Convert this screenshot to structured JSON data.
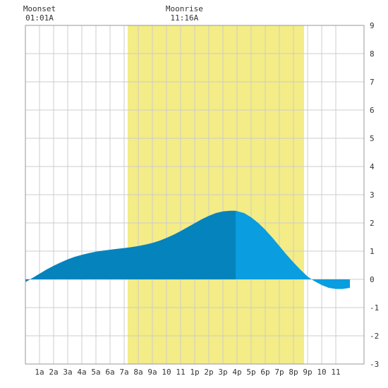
{
  "chart_data": {
    "type": "area",
    "title": "",
    "xlabel": "",
    "ylabel": "",
    "xlim": [
      0,
      24
    ],
    "ylim": [
      -3,
      9
    ],
    "grid": true,
    "x_ticks": [
      {
        "x": 1,
        "label": "1a"
      },
      {
        "x": 2,
        "label": "2a"
      },
      {
        "x": 3,
        "label": "3a"
      },
      {
        "x": 4,
        "label": "4a"
      },
      {
        "x": 5,
        "label": "5a"
      },
      {
        "x": 6,
        "label": "6a"
      },
      {
        "x": 7,
        "label": "7a"
      },
      {
        "x": 8,
        "label": "8a"
      },
      {
        "x": 9,
        "label": "9a"
      },
      {
        "x": 10,
        "label": "10"
      },
      {
        "x": 11,
        "label": "11"
      },
      {
        "x": 12,
        "label": "1p"
      },
      {
        "x": 13,
        "label": "2p"
      },
      {
        "x": 14,
        "label": "3p"
      },
      {
        "x": 15,
        "label": "4p"
      },
      {
        "x": 16,
        "label": "5p"
      },
      {
        "x": 17,
        "label": "6p"
      },
      {
        "x": 18,
        "label": "7p"
      },
      {
        "x": 19,
        "label": "8p"
      },
      {
        "x": 20,
        "label": "9p"
      },
      {
        "x": 21,
        "label": "10"
      },
      {
        "x": 22,
        "label": "11"
      }
    ],
    "y_ticks": [
      -3,
      -2,
      -1,
      0,
      1,
      2,
      3,
      4,
      5,
      6,
      7,
      8,
      9
    ],
    "daylight": {
      "start": 7.25,
      "end": 19.75,
      "color": "#f4ec86"
    },
    "events": [
      {
        "name": "Moonset",
        "time": "01:01A",
        "x": 1.0
      },
      {
        "name": "Moonrise",
        "time": "11:16A",
        "x": 11.27
      }
    ],
    "highlight_x": 14.9,
    "series": [
      {
        "points": [
          [
            0,
            -0.1
          ],
          [
            0.5,
            0.05
          ],
          [
            1,
            0.2
          ],
          [
            1.5,
            0.35
          ],
          [
            2,
            0.48
          ],
          [
            2.5,
            0.6
          ],
          [
            3,
            0.71
          ],
          [
            3.5,
            0.8
          ],
          [
            4,
            0.87
          ],
          [
            4.5,
            0.93
          ],
          [
            5,
            0.98
          ],
          [
            5.5,
            1.02
          ],
          [
            6,
            1.05
          ],
          [
            6.5,
            1.08
          ],
          [
            7,
            1.11
          ],
          [
            7.5,
            1.14
          ],
          [
            8,
            1.18
          ],
          [
            8.5,
            1.23
          ],
          [
            9,
            1.29
          ],
          [
            9.5,
            1.37
          ],
          [
            10,
            1.47
          ],
          [
            10.5,
            1.58
          ],
          [
            11,
            1.71
          ],
          [
            11.5,
            1.85
          ],
          [
            12,
            1.99
          ],
          [
            12.5,
            2.13
          ],
          [
            13,
            2.25
          ],
          [
            13.5,
            2.35
          ],
          [
            14,
            2.41
          ],
          [
            14.5,
            2.43
          ],
          [
            14.9,
            2.43
          ],
          [
            15.5,
            2.35
          ],
          [
            16,
            2.2
          ],
          [
            16.5,
            2.0
          ],
          [
            17,
            1.76
          ],
          [
            17.5,
            1.48
          ],
          [
            18,
            1.18
          ],
          [
            18.5,
            0.88
          ],
          [
            19,
            0.6
          ],
          [
            19.5,
            0.34
          ],
          [
            20,
            0.1
          ],
          [
            20.5,
            -0.07
          ],
          [
            21,
            -0.2
          ],
          [
            21.5,
            -0.3
          ],
          [
            22,
            -0.34
          ],
          [
            22.5,
            -0.34
          ],
          [
            23,
            -0.3
          ]
        ]
      }
    ],
    "colors": {
      "fill_dark": "#0583bd",
      "fill_light": "#0a9ddf",
      "grid": "#cccccc",
      "axis": "#999999",
      "text": "#333333"
    }
  }
}
